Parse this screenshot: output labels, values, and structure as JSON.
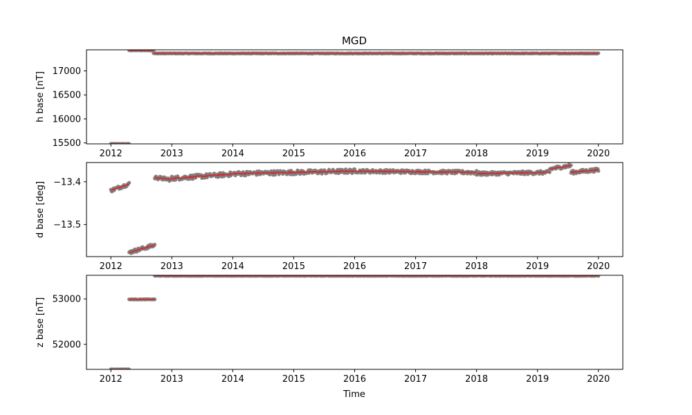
{
  "chart_data": {
    "type": "scatter",
    "title": "MGD",
    "xlabel": "Time",
    "x_ticks": [
      "2012",
      "2013",
      "2014",
      "2015",
      "2016",
      "2017",
      "2018",
      "2019",
      "2020"
    ],
    "xlim": [
      2011.6,
      2020.4
    ],
    "scatter_color": "#808080",
    "line_color": "#d62728",
    "panels": [
      {
        "ylabel": "h base [nT]",
        "ylim": [
          15480,
          17440
        ],
        "yticks": [
          15500,
          16000,
          16500,
          17000
        ],
        "yticklabels": [
          "15500",
          "16000",
          "16500",
          "17000"
        ],
        "segments": [
          {
            "start": 2012.0,
            "end": 2012.3,
            "value": 15480,
            "noise": 4
          },
          {
            "start": 2012.3,
            "end": 2012.7,
            "value": 17430,
            "noise": 6
          },
          {
            "start": 2012.7,
            "end": 2020.0,
            "value": 17365,
            "noise": 6
          }
        ]
      },
      {
        "ylabel": "d base [deg]",
        "ylim": [
          -13.575,
          -13.355
        ],
        "yticks": [
          -13.5,
          -13.4
        ],
        "yticklabels": [
          "−13.5",
          "−13.4"
        ],
        "segments": [
          {
            "start": 2012.0,
            "end": 2012.3,
            "value_start": -13.42,
            "value_end": -13.405,
            "noise": 0.004
          },
          {
            "start": 2012.3,
            "end": 2012.72,
            "value_start": -13.565,
            "value_end": -13.548,
            "noise": 0.004
          },
          {
            "start": 2012.72,
            "end": 2013.0,
            "value_start": -13.39,
            "value_end": -13.395,
            "noise": 0.004
          },
          {
            "start": 2013.0,
            "end": 2014.0,
            "value_start": -13.392,
            "value_end": -13.382,
            "noise": 0.005
          },
          {
            "start": 2014.0,
            "end": 2016.0,
            "value_start": -13.381,
            "value_end": -13.375,
            "noise": 0.005
          },
          {
            "start": 2016.0,
            "end": 2018.0,
            "value_start": -13.375,
            "value_end": -13.378,
            "noise": 0.004
          },
          {
            "start": 2018.0,
            "end": 2019.2,
            "value_start": -13.381,
            "value_end": -13.378,
            "noise": 0.004
          },
          {
            "start": 2019.2,
            "end": 2019.55,
            "value_start": -13.37,
            "value_end": -13.362,
            "noise": 0.004
          },
          {
            "start": 2019.55,
            "end": 2020.0,
            "value_start": -13.378,
            "value_end": -13.372,
            "noise": 0.004
          }
        ]
      },
      {
        "ylabel": "z base [nT]",
        "ylim": [
          51450,
          53520
        ],
        "yticks": [
          52000,
          53000
        ],
        "yticklabels": [
          "52000",
          "53000"
        ],
        "segments": [
          {
            "start": 2012.0,
            "end": 2012.3,
            "value": 51450,
            "noise": 4
          },
          {
            "start": 2012.3,
            "end": 2012.72,
            "value": 52990,
            "noise": 5
          },
          {
            "start": 2012.72,
            "end": 2020.0,
            "value": 53510,
            "noise": 5
          }
        ]
      }
    ]
  }
}
